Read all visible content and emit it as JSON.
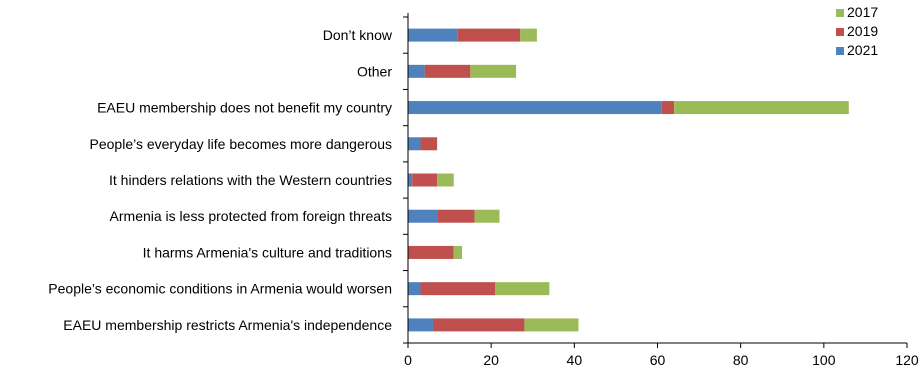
{
  "chart_data": {
    "type": "bar",
    "orientation": "horizontal",
    "stacked": true,
    "title": "",
    "xlabel": "",
    "ylabel": "",
    "xlim": [
      0,
      120
    ],
    "xticks": [
      "0",
      "20",
      "40",
      "60",
      "80",
      "100",
      "120"
    ],
    "grid": false,
    "legend_position": "top-right",
    "categories": [
      "Don’t know",
      "Other",
      "EAEU membership does not benefit my country",
      "People’s everyday life becomes more dangerous",
      "It hinders relations with the Western countries",
      "Armenia is less protected from foreign threats",
      "It harms Armenia's culture and traditions",
      "People’s economic conditions in Armenia would worsen",
      "EAEU membership restricts Armenia's independence"
    ],
    "series": [
      {
        "name": "2021",
        "color": "#4f81bd",
        "values": [
          12,
          4,
          61,
          3,
          1,
          7,
          0,
          3,
          6
        ]
      },
      {
        "name": "2019",
        "color": "#c0504d",
        "values": [
          15,
          11,
          3,
          4,
          6,
          9,
          11,
          18,
          22
        ]
      },
      {
        "name": "2017",
        "color": "#9bbb59",
        "values": [
          4,
          11,
          42,
          0,
          4,
          6,
          2,
          13,
          13
        ]
      }
    ],
    "legend_order": [
      "2017",
      "2019",
      "2021"
    ]
  }
}
